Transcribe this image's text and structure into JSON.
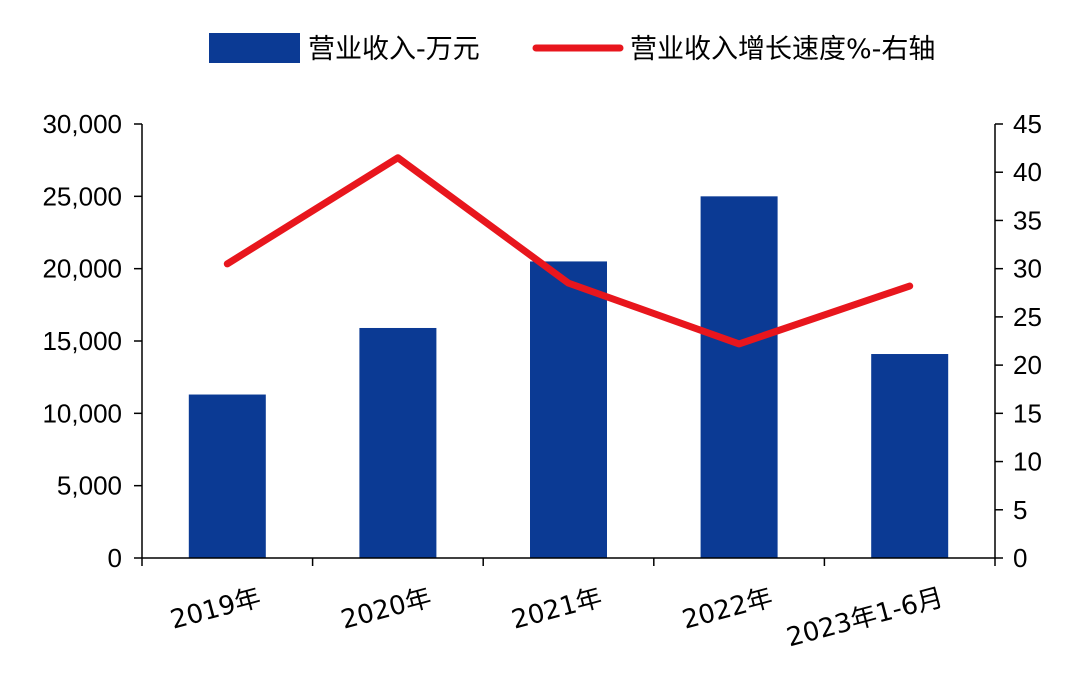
{
  "chart_data": {
    "type": "bar",
    "categories": [
      "2019年",
      "2020年",
      "2021年",
      "2022年",
      "2023年1-6月"
    ],
    "series": [
      {
        "name": "营业收入-万元",
        "type": "bar",
        "axis": "left",
        "color": "#0b3a94",
        "values": [
          11300,
          15900,
          20500,
          25000,
          14100
        ]
      },
      {
        "name": "营业收入增长速度%-右轴",
        "type": "line",
        "axis": "right",
        "color": "#e8161d",
        "values": [
          30.5,
          41.5,
          28.5,
          22.2,
          28.2
        ]
      }
    ],
    "y_left": {
      "min": 0,
      "max": 30000,
      "ticks": [
        0,
        5000,
        10000,
        15000,
        20000,
        25000,
        30000
      ],
      "tick_labels": [
        "0",
        "5,000",
        "10,000",
        "15,000",
        "20,000",
        "25,000",
        "30,000"
      ]
    },
    "y_right": {
      "min": 0,
      "max": 45,
      "ticks": [
        0,
        5,
        10,
        15,
        20,
        25,
        30,
        35,
        40,
        45
      ],
      "tick_labels": [
        "0",
        "5",
        "10",
        "15",
        "20",
        "25",
        "30",
        "35",
        "40",
        "45"
      ]
    },
    "legend": {
      "position": "top",
      "items": [
        "营业收入-万元",
        "营业收入增长速度%-右轴"
      ]
    },
    "grid": false
  }
}
